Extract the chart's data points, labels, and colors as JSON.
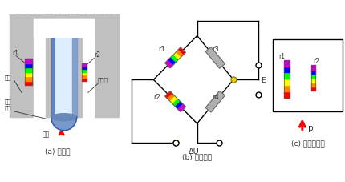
{
  "title_a": "(a) 结构图",
  "title_b": "(b) 测量桥路",
  "title_c": "(c) 受力示意图",
  "label_r1": "r1",
  "label_r2": "r2",
  "label_r3": "r3",
  "label_r4": "r4",
  "label_E": "E",
  "label_deltaU": "ΔU",
  "label_outer": "外壳",
  "label_strain": "应变筒",
  "label_seal": "密封\n膜片",
  "label_pressure": "压力",
  "label_p": "p",
  "rainbow_colors": [
    "#ff0000",
    "#ff8800",
    "#ffff00",
    "#00ff00",
    "#0000ff",
    "#cc00cc"
  ],
  "gray_resistor": "#b0b0b0",
  "struct_gray": "#c0c0c0",
  "struct_dark": "#888888",
  "blue_fill": "#7799cc",
  "blue_light": "#aabbdd",
  "white": "#ffffff"
}
